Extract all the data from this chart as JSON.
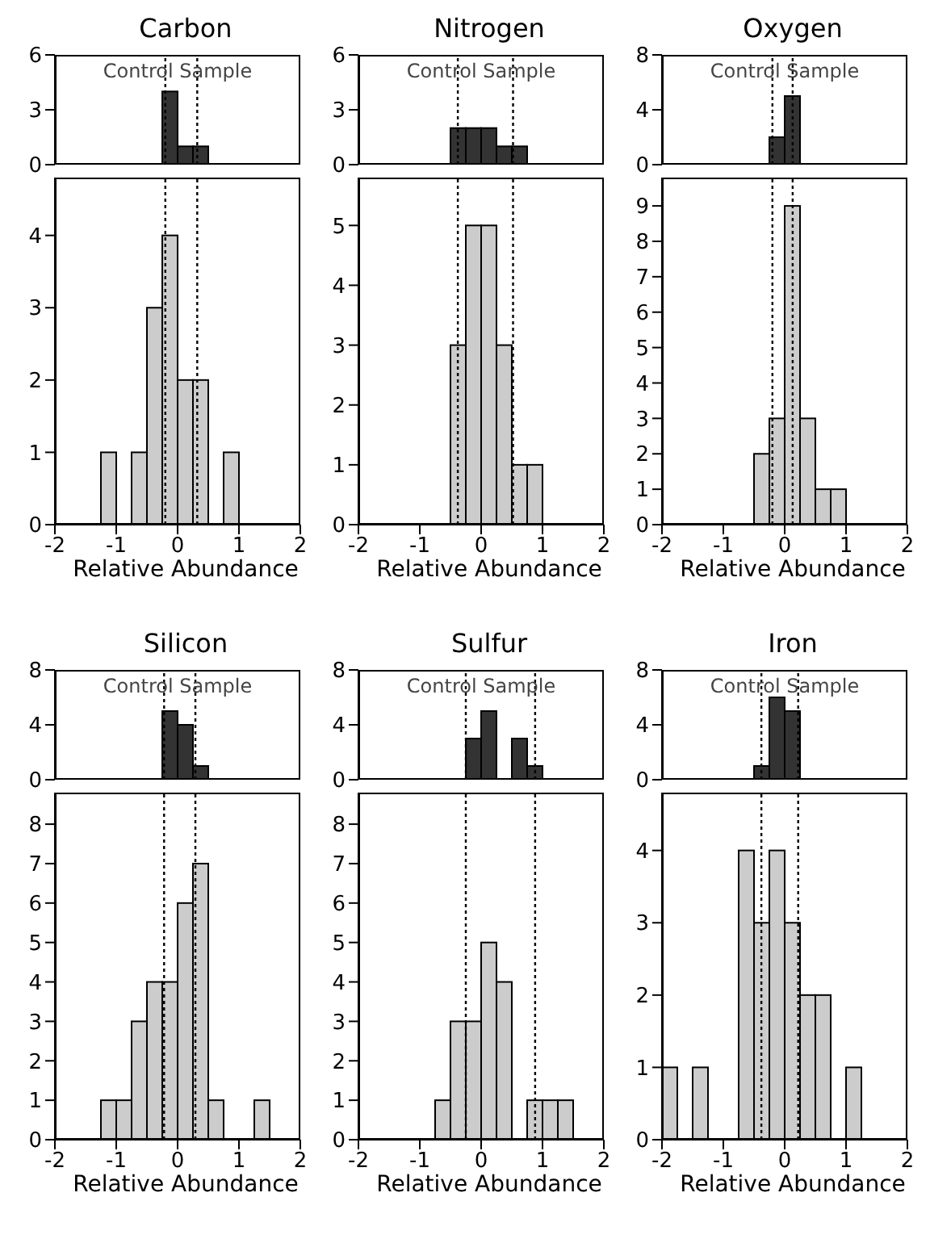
{
  "chart_data": [
    {
      "type": "histogram",
      "title": "Carbon",
      "annotations": [
        "Control Sample"
      ],
      "bins": [
        -2,
        -1.75,
        -1.5,
        -1.25,
        -1,
        -0.75,
        -0.5,
        -0.25,
        0,
        0.25,
        0.5,
        0.75,
        1,
        1.25,
        1.5,
        1.75,
        2
      ],
      "values": [
        0,
        0,
        0,
        0,
        0,
        0,
        0,
        4,
        1,
        1,
        0,
        0,
        0,
        0,
        0,
        0
      ],
      "color": "#333333",
      "xlim": [
        -2,
        2
      ],
      "xticks": [
        -2,
        -1,
        0,
        1,
        2
      ],
      "ylim": [
        0,
        6
      ],
      "yticks": [
        0,
        3,
        6
      ],
      "tick_labels": "y",
      "ref_lines": [
        {
          "axis": "x",
          "value": -0.2,
          "line_style": "dotted"
        },
        {
          "axis": "x",
          "value": 0.32,
          "line_style": "dotted"
        }
      ]
    },
    {
      "type": "histogram",
      "xlabel": "Relative Abundance",
      "bins": [
        -2,
        -1.75,
        -1.5,
        -1.25,
        -1,
        -0.75,
        -0.5,
        -0.25,
        0,
        0.25,
        0.5,
        0.75,
        1,
        1.25,
        1.5,
        1.75,
        2
      ],
      "values": [
        0,
        0,
        0,
        1,
        0,
        1,
        3,
        4,
        2,
        2,
        0,
        1,
        0,
        0,
        0,
        0
      ],
      "color": "#cccccc",
      "xlim": [
        -2,
        2
      ],
      "xticks": [
        -2,
        -1,
        0,
        1,
        2
      ],
      "ylim": [
        0,
        4.8
      ],
      "yticks": [
        0,
        1,
        2,
        3,
        4
      ],
      "ref_lines": [
        {
          "axis": "x",
          "value": -0.2,
          "line_style": "dotted"
        },
        {
          "axis": "x",
          "value": 0.32,
          "line_style": "dotted"
        }
      ]
    },
    {
      "type": "histogram",
      "title": "Nitrogen",
      "annotations": [
        "Control Sample"
      ],
      "bins": [
        -2,
        -1.75,
        -1.5,
        -1.25,
        -1,
        -0.75,
        -0.5,
        -0.25,
        0,
        0.25,
        0.5,
        0.75,
        1,
        1.25,
        1.5,
        1.75,
        2
      ],
      "values": [
        0,
        0,
        0,
        0,
        0,
        0,
        2,
        2,
        2,
        1,
        1,
        0,
        0,
        0,
        0,
        0
      ],
      "color": "#333333",
      "xlim": [
        -2,
        2
      ],
      "xticks": [
        -2,
        -1,
        0,
        1,
        2
      ],
      "ylim": [
        0,
        6
      ],
      "yticks": [
        0,
        3,
        6
      ],
      "tick_labels": "y",
      "ref_lines": [
        {
          "axis": "x",
          "value": -0.38,
          "line_style": "dotted"
        },
        {
          "axis": "x",
          "value": 0.52,
          "line_style": "dotted"
        }
      ]
    },
    {
      "type": "histogram",
      "xlabel": "Relative Abundance",
      "bins": [
        -2,
        -1.75,
        -1.5,
        -1.25,
        -1,
        -0.75,
        -0.5,
        -0.25,
        0,
        0.25,
        0.5,
        0.75,
        1,
        1.25,
        1.5,
        1.75,
        2
      ],
      "values": [
        0,
        0,
        0,
        0,
        0,
        0,
        3,
        5,
        5,
        3,
        1,
        1,
        0,
        0,
        0,
        0
      ],
      "color": "#cccccc",
      "xlim": [
        -2,
        2
      ],
      "xticks": [
        -2,
        -1,
        0,
        1,
        2
      ],
      "ylim": [
        0,
        5.8
      ],
      "yticks": [
        0,
        1,
        2,
        3,
        4,
        5
      ],
      "ref_lines": [
        {
          "axis": "x",
          "value": -0.38,
          "line_style": "dotted"
        },
        {
          "axis": "x",
          "value": 0.52,
          "line_style": "dotted"
        }
      ]
    },
    {
      "type": "histogram",
      "title": "Oxygen",
      "annotations": [
        "Control Sample"
      ],
      "bins": [
        -2,
        -1.75,
        -1.5,
        -1.25,
        -1,
        -0.75,
        -0.5,
        -0.25,
        0,
        0.25,
        0.5,
        0.75,
        1,
        1.25,
        1.5,
        1.75,
        2
      ],
      "values": [
        0,
        0,
        0,
        0,
        0,
        0,
        0,
        2,
        5,
        0,
        0,
        0,
        0,
        0,
        0,
        0
      ],
      "color": "#333333",
      "xlim": [
        -2,
        2
      ],
      "xticks": [
        -2,
        -1,
        0,
        1,
        2
      ],
      "ylim": [
        0,
        8
      ],
      "yticks": [
        0,
        4,
        8
      ],
      "tick_labels": "y",
      "ref_lines": [
        {
          "axis": "x",
          "value": -0.2,
          "line_style": "dotted"
        },
        {
          "axis": "x",
          "value": 0.13,
          "line_style": "dotted"
        }
      ]
    },
    {
      "type": "histogram",
      "xlabel": "Relative Abundance",
      "bins": [
        -2,
        -1.75,
        -1.5,
        -1.25,
        -1,
        -0.75,
        -0.5,
        -0.25,
        0,
        0.25,
        0.5,
        0.75,
        1,
        1.25,
        1.5,
        1.75,
        2
      ],
      "values": [
        0,
        0,
        0,
        0,
        0,
        0,
        2,
        3,
        9,
        3,
        1,
        1,
        0,
        0,
        0,
        0
      ],
      "color": "#cccccc",
      "xlim": [
        -2,
        2
      ],
      "xticks": [
        -2,
        -1,
        0,
        1,
        2
      ],
      "ylim": [
        0,
        9.8
      ],
      "yticks": [
        0,
        1,
        2,
        3,
        4,
        5,
        6,
        7,
        8,
        9
      ],
      "ref_lines": [
        {
          "axis": "x",
          "value": -0.2,
          "line_style": "dotted"
        },
        {
          "axis": "x",
          "value": 0.13,
          "line_style": "dotted"
        }
      ]
    },
    {
      "type": "histogram",
      "title": "Silicon",
      "annotations": [
        "Control Sample"
      ],
      "bins": [
        -2,
        -1.75,
        -1.5,
        -1.25,
        -1,
        -0.75,
        -0.5,
        -0.25,
        0,
        0.25,
        0.5,
        0.75,
        1,
        1.25,
        1.5,
        1.75,
        2
      ],
      "values": [
        0,
        0,
        0,
        0,
        0,
        0,
        0,
        5,
        4,
        1,
        0,
        0,
        0,
        0,
        0,
        0
      ],
      "color": "#333333",
      "xlim": [
        -2,
        2
      ],
      "xticks": [
        -2,
        -1,
        0,
        1,
        2
      ],
      "ylim": [
        0,
        8
      ],
      "yticks": [
        0,
        4,
        8
      ],
      "tick_labels": "y",
      "ref_lines": [
        {
          "axis": "x",
          "value": -0.22,
          "line_style": "dotted"
        },
        {
          "axis": "x",
          "value": 0.29,
          "line_style": "dotted"
        }
      ]
    },
    {
      "type": "histogram",
      "xlabel": "Relative Abundance",
      "bins": [
        -2,
        -1.75,
        -1.5,
        -1.25,
        -1,
        -0.75,
        -0.5,
        -0.25,
        0,
        0.25,
        0.5,
        0.75,
        1,
        1.25,
        1.5,
        1.75,
        2
      ],
      "values": [
        0,
        0,
        0,
        1,
        1,
        3,
        4,
        4,
        6,
        7,
        1,
        0,
        0,
        1,
        0,
        0
      ],
      "color": "#cccccc",
      "xlim": [
        -2,
        2
      ],
      "xticks": [
        -2,
        -1,
        0,
        1,
        2
      ],
      "ylim": [
        0,
        8.8
      ],
      "yticks": [
        0,
        1,
        2,
        3,
        4,
        5,
        6,
        7,
        8
      ],
      "ref_lines": [
        {
          "axis": "x",
          "value": -0.22,
          "line_style": "dotted"
        },
        {
          "axis": "x",
          "value": 0.29,
          "line_style": "dotted"
        }
      ]
    },
    {
      "type": "histogram",
      "title": "Sulfur",
      "annotations": [
        "Control Sample"
      ],
      "bins": [
        -2,
        -1.75,
        -1.5,
        -1.25,
        -1,
        -0.75,
        -0.5,
        -0.25,
        0,
        0.25,
        0.5,
        0.75,
        1,
        1.25,
        1.5,
        1.75,
        2
      ],
      "values": [
        0,
        0,
        0,
        0,
        0,
        0,
        0,
        3,
        5,
        0,
        3,
        1,
        0,
        0,
        0,
        0
      ],
      "color": "#333333",
      "xlim": [
        -2,
        2
      ],
      "xticks": [
        -2,
        -1,
        0,
        1,
        2
      ],
      "ylim": [
        0,
        8
      ],
      "yticks": [
        0,
        4,
        8
      ],
      "tick_labels": "y",
      "ref_lines": [
        {
          "axis": "x",
          "value": -0.25,
          "line_style": "dotted"
        },
        {
          "axis": "x",
          "value": 0.88,
          "line_style": "dotted"
        }
      ]
    },
    {
      "type": "histogram",
      "xlabel": "Relative Abundance",
      "bins": [
        -2,
        -1.75,
        -1.5,
        -1.25,
        -1,
        -0.75,
        -0.5,
        -0.25,
        0,
        0.25,
        0.5,
        0.75,
        1,
        1.25,
        1.5,
        1.75,
        2
      ],
      "values": [
        0,
        0,
        0,
        0,
        0,
        1,
        3,
        3,
        5,
        4,
        0,
        1,
        1,
        1,
        0,
        0
      ],
      "color": "#cccccc",
      "xlim": [
        -2,
        2
      ],
      "xticks": [
        -2,
        -1,
        0,
        1,
        2
      ],
      "ylim": [
        0,
        8.8
      ],
      "yticks": [
        0,
        1,
        2,
        3,
        4,
        5,
        6,
        7,
        8
      ],
      "ref_lines": [
        {
          "axis": "x",
          "value": -0.25,
          "line_style": "dotted"
        },
        {
          "axis": "x",
          "value": 0.88,
          "line_style": "dotted"
        }
      ]
    },
    {
      "type": "histogram",
      "title": "Iron",
      "annotations": [
        "Control Sample"
      ],
      "bins": [
        -2,
        -1.75,
        -1.5,
        -1.25,
        -1,
        -0.75,
        -0.5,
        -0.25,
        0,
        0.25,
        0.5,
        0.75,
        1,
        1.25,
        1.5,
        1.75,
        2
      ],
      "values": [
        0,
        0,
        0,
        0,
        0,
        0,
        1,
        6,
        5,
        0,
        0,
        0,
        0,
        0,
        0,
        0
      ],
      "color": "#333333",
      "xlim": [
        -2,
        2
      ],
      "xticks": [
        -2,
        -1,
        0,
        1,
        2
      ],
      "ylim": [
        0,
        8
      ],
      "yticks": [
        0,
        4,
        8
      ],
      "tick_labels": "y",
      "ref_lines": [
        {
          "axis": "x",
          "value": -0.38,
          "line_style": "dotted"
        },
        {
          "axis": "x",
          "value": 0.22,
          "line_style": "dotted"
        }
      ]
    },
    {
      "type": "histogram",
      "xlabel": "Relative Abundance",
      "bins": [
        -2,
        -1.75,
        -1.5,
        -1.25,
        -1,
        -0.75,
        -0.5,
        -0.25,
        0,
        0.25,
        0.5,
        0.75,
        1,
        1.25,
        1.5,
        1.75,
        2
      ],
      "values": [
        1,
        0,
        1,
        0,
        0,
        4,
        3,
        4,
        3,
        2,
        2,
        0,
        1,
        0,
        0,
        0
      ],
      "color": "#cccccc",
      "xlim": [
        -2,
        2
      ],
      "xticks": [
        -2,
        -1,
        0,
        1,
        2
      ],
      "ylim": [
        0,
        4.8
      ],
      "yticks": [
        0,
        1,
        2,
        3,
        4
      ],
      "ref_lines": [
        {
          "axis": "x",
          "value": -0.38,
          "line_style": "dotted"
        },
        {
          "axis": "x",
          "value": 0.22,
          "line_style": "dotted"
        }
      ]
    }
  ]
}
